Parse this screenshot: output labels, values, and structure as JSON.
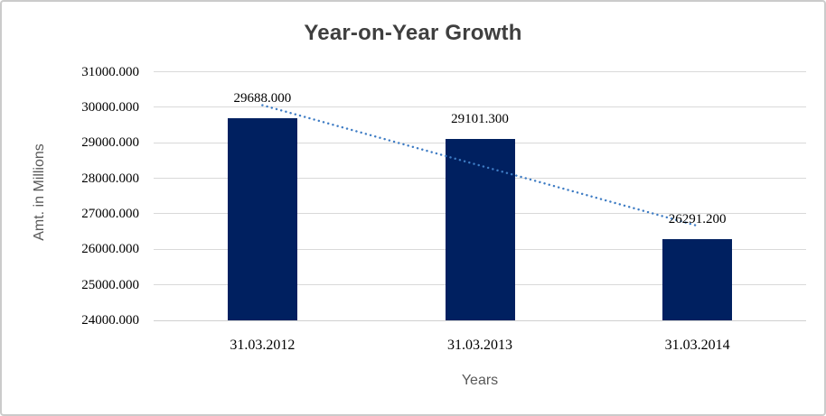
{
  "chart_data": {
    "type": "bar",
    "title": "Year-on-Year Growth",
    "xlabel": "Years",
    "ylabel": "Amt. in Millions",
    "categories": [
      "31.03.2012",
      "31.03.2013",
      "31.03.2014"
    ],
    "values": [
      29688.0,
      29101.3,
      26291.2
    ],
    "data_labels": [
      "29688.000",
      "29101.300",
      "26291.200"
    ],
    "ylim": [
      24000,
      31000
    ],
    "ytick_step": 1000,
    "ytick_labels": [
      "24000.000",
      "25000.000",
      "26000.000",
      "27000.000",
      "28000.000",
      "29000.000",
      "30000.000",
      "31000.000"
    ],
    "grid": true,
    "legend": "none",
    "trendline": {
      "type": "linear",
      "style": "dotted",
      "color": "#3e7cc4"
    },
    "colors": {
      "bar": "#002060",
      "gridline": "#d9d9d9",
      "axis_line": "#cfcfcf",
      "title": "#3f3f3f",
      "axis_title": "#595959",
      "tick_label": "#000000",
      "background": "#ffffff"
    }
  }
}
